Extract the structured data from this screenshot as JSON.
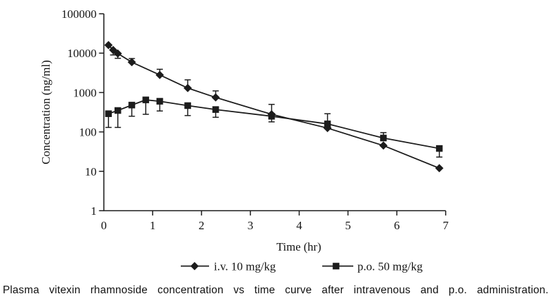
{
  "figure": {
    "caption": "Plasma vitexin rhamnoside concentration vs time curve after intravenous and p.o. administration."
  },
  "chart_data": {
    "type": "line",
    "title": "",
    "xlabel": "Time (hr)",
    "ylabel": "Concentration (ng/ml)",
    "x_axis": {
      "min": 0,
      "max": 7,
      "ticks": [
        0,
        1,
        2,
        3,
        4,
        5,
        6,
        7
      ]
    },
    "y_axis": {
      "scale": "log",
      "min": 1,
      "max": 100000,
      "ticks": [
        1,
        10,
        100,
        1000,
        10000,
        100000
      ],
      "tick_labels": [
        "1",
        "10",
        "100",
        "1000",
        "10000",
        "100000"
      ]
    },
    "grid": false,
    "legend_position": "bottom",
    "line_color": "#1c1c1c",
    "x_plot_stretch": 1.145,
    "series": [
      {
        "name": "i.v. 10 mg/kg",
        "marker": "diamond",
        "points": [
          {
            "t": 0.083,
            "c": 16000
          },
          {
            "t": 0.167,
            "c": 12000,
            "lo": 9000
          },
          {
            "t": 0.25,
            "c": 9800,
            "lo": 7400
          },
          {
            "t": 0.5,
            "c": 5900,
            "hi": 7300
          },
          {
            "t": 1,
            "c": 2800,
            "hi": 3900
          },
          {
            "t": 1.5,
            "c": 1300,
            "hi": 2100
          },
          {
            "t": 2,
            "c": 750,
            "hi": 1100
          },
          {
            "t": 3,
            "c": 280,
            "lo": 180
          },
          {
            "t": 4,
            "c": 125
          },
          {
            "t": 5,
            "c": 45
          },
          {
            "t": 6,
            "c": 12
          }
        ]
      },
      {
        "name": "p.o. 50 mg/kg",
        "marker": "square",
        "points": [
          {
            "t": 0.083,
            "c": 290,
            "lo": 130
          },
          {
            "t": 0.25,
            "c": 350,
            "lo": 130
          },
          {
            "t": 0.5,
            "c": 480,
            "lo": 250
          },
          {
            "t": 0.75,
            "c": 650,
            "lo": 280
          },
          {
            "t": 1,
            "c": 600,
            "lo": 340
          },
          {
            "t": 1.5,
            "c": 465,
            "lo": 260
          },
          {
            "t": 2,
            "c": 370,
            "lo": 235
          },
          {
            "t": 3,
            "c": 250,
            "hi": 500
          },
          {
            "t": 4,
            "c": 160,
            "hi": 290
          },
          {
            "t": 5,
            "c": 70,
            "hi": 96
          },
          {
            "t": 6,
            "c": 38,
            "lo": 23
          }
        ]
      }
    ]
  }
}
